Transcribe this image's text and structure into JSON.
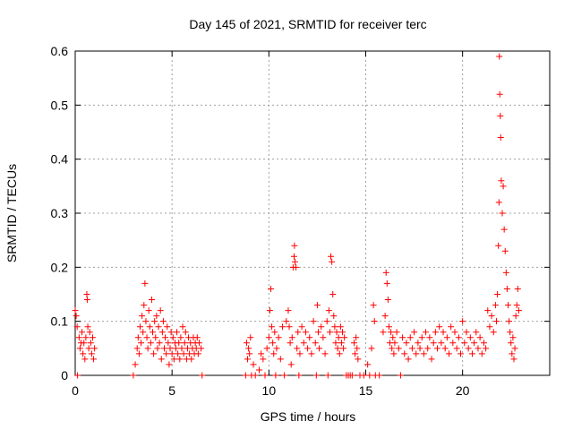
{
  "chart_data": {
    "type": "scatter",
    "title": "Day 145 of 2021, SRMTID for receiver terc",
    "xlabel": "GPS time / hours",
    "ylabel": "SRMTID / TECUs",
    "xlim": [
      0,
      24.5
    ],
    "ylim": [
      0,
      0.6
    ],
    "x_ticks": [
      0,
      5,
      10,
      15,
      20
    ],
    "x_tick_labels": [
      "0",
      "5",
      "10",
      "15",
      "20"
    ],
    "y_ticks": [
      0,
      0.1,
      0.2,
      0.3,
      0.4,
      0.5,
      0.6
    ],
    "y_tick_labels": [
      "0",
      "0.1",
      "0.2",
      "0.3",
      "0.4",
      "0.5",
      "0.6"
    ],
    "grid": true,
    "marker": "plus",
    "color": "#ff0000",
    "series": [
      {
        "name": "SRMTID",
        "points": [
          [
            0.0,
            0.12
          ],
          [
            0.05,
            0.11
          ],
          [
            0.1,
            0.09
          ],
          [
            0.12,
            0.0
          ],
          [
            0.2,
            0.07
          ],
          [
            0.25,
            0.05
          ],
          [
            0.3,
            0.06
          ],
          [
            0.35,
            0.08
          ],
          [
            0.4,
            0.04
          ],
          [
            0.45,
            0.06
          ],
          [
            0.5,
            0.03
          ],
          [
            0.55,
            0.07
          ],
          [
            0.6,
            0.15
          ],
          [
            0.62,
            0.14
          ],
          [
            0.65,
            0.09
          ],
          [
            0.7,
            0.05
          ],
          [
            0.75,
            0.08
          ],
          [
            0.8,
            0.06
          ],
          [
            0.85,
            0.04
          ],
          [
            0.9,
            0.07
          ],
          [
            0.95,
            0.03
          ],
          [
            1.0,
            0.05
          ],
          [
            3.0,
            0.0
          ],
          [
            3.1,
            0.02
          ],
          [
            3.2,
            0.05
          ],
          [
            3.25,
            0.07
          ],
          [
            3.3,
            0.04
          ],
          [
            3.35,
            0.09
          ],
          [
            3.4,
            0.06
          ],
          [
            3.45,
            0.11
          ],
          [
            3.5,
            0.08
          ],
          [
            3.55,
            0.13
          ],
          [
            3.6,
            0.17
          ],
          [
            3.65,
            0.1
          ],
          [
            3.7,
            0.07
          ],
          [
            3.75,
            0.05
          ],
          [
            3.8,
            0.12
          ],
          [
            3.85,
            0.09
          ],
          [
            3.9,
            0.06
          ],
          [
            3.95,
            0.14
          ],
          [
            4.0,
            0.08
          ],
          [
            4.05,
            0.04
          ],
          [
            4.1,
            0.1
          ],
          [
            4.15,
            0.07
          ],
          [
            4.2,
            0.11
          ],
          [
            4.25,
            0.05
          ],
          [
            4.3,
            0.09
          ],
          [
            4.35,
            0.06
          ],
          [
            4.4,
            0.12
          ],
          [
            4.45,
            0.03
          ],
          [
            4.5,
            0.08
          ],
          [
            4.55,
            0.1
          ],
          [
            4.6,
            0.05
          ],
          [
            4.65,
            0.07
          ],
          [
            4.7,
            0.04
          ],
          [
            4.75,
            0.09
          ],
          [
            4.8,
            0.06
          ],
          [
            4.85,
            0.02
          ],
          [
            4.9,
            0.05
          ],
          [
            4.95,
            0.08
          ],
          [
            5.0,
            0.04
          ],
          [
            5.05,
            0.07
          ],
          [
            5.1,
            0.03
          ],
          [
            5.15,
            0.06
          ],
          [
            5.2,
            0.05
          ],
          [
            5.25,
            0.08
          ],
          [
            5.3,
            0.04
          ],
          [
            5.35,
            0.06
          ],
          [
            5.4,
            0.03
          ],
          [
            5.45,
            0.07
          ],
          [
            5.5,
            0.05
          ],
          [
            5.55,
            0.09
          ],
          [
            5.6,
            0.04
          ],
          [
            5.65,
            0.06
          ],
          [
            5.7,
            0.08
          ],
          [
            5.75,
            0.03
          ],
          [
            5.8,
            0.05
          ],
          [
            5.85,
            0.07
          ],
          [
            5.9,
            0.04
          ],
          [
            5.95,
            0.06
          ],
          [
            6.0,
            0.03
          ],
          [
            6.05,
            0.05
          ],
          [
            6.1,
            0.07
          ],
          [
            6.15,
            0.04
          ],
          [
            6.2,
            0.06
          ],
          [
            6.25,
            0.05
          ],
          [
            6.3,
            0.07
          ],
          [
            6.35,
            0.04
          ],
          [
            6.4,
            0.06
          ],
          [
            6.5,
            0.05
          ],
          [
            6.55,
            0.0
          ],
          [
            8.8,
            0.0
          ],
          [
            8.85,
            0.06
          ],
          [
            8.9,
            0.03
          ],
          [
            8.95,
            0.05
          ],
          [
            9.0,
            0.04
          ],
          [
            9.05,
            0.07
          ],
          [
            9.1,
            0.0
          ],
          [
            9.2,
            0.02
          ],
          [
            9.3,
            0.0
          ],
          [
            9.5,
            0.01
          ],
          [
            9.6,
            0.04
          ],
          [
            9.7,
            0.03
          ],
          [
            9.8,
            0.0
          ],
          [
            9.9,
            0.05
          ],
          [
            10.0,
            0.07
          ],
          [
            10.05,
            0.12
          ],
          [
            10.1,
            0.16
          ],
          [
            10.15,
            0.09
          ],
          [
            10.2,
            0.06
          ],
          [
            10.25,
            0.04
          ],
          [
            10.3,
            0.08
          ],
          [
            10.35,
            0.0
          ],
          [
            10.4,
            0.05
          ],
          [
            10.5,
            0.07
          ],
          [
            10.6,
            0.03
          ],
          [
            10.7,
            0.09
          ],
          [
            10.8,
            0.0
          ],
          [
            10.9,
            0.1
          ],
          [
            11.0,
            0.12
          ],
          [
            11.05,
            0.09
          ],
          [
            11.1,
            0.06
          ],
          [
            11.15,
            0.02
          ],
          [
            11.2,
            0.07
          ],
          [
            11.25,
            0.2
          ],
          [
            11.3,
            0.22
          ],
          [
            11.32,
            0.24
          ],
          [
            11.35,
            0.21
          ],
          [
            11.4,
            0.2
          ],
          [
            11.45,
            0.05
          ],
          [
            11.5,
            0.08
          ],
          [
            11.55,
            0.0
          ],
          [
            11.6,
            0.04
          ],
          [
            11.7,
            0.09
          ],
          [
            11.8,
            0.06
          ],
          [
            11.9,
            0.08
          ],
          [
            12.0,
            0.05
          ],
          [
            12.1,
            0.07
          ],
          [
            12.2,
            0.04
          ],
          [
            12.3,
            0.1
          ],
          [
            12.4,
            0.06
          ],
          [
            12.45,
            0.0
          ],
          [
            12.5,
            0.13
          ],
          [
            12.55,
            0.08
          ],
          [
            12.6,
            0.05
          ],
          [
            12.7,
            0.09
          ],
          [
            12.8,
            0.07
          ],
          [
            12.9,
            0.04
          ],
          [
            13.0,
            0.1
          ],
          [
            13.05,
            0.0
          ],
          [
            13.1,
            0.12
          ],
          [
            13.15,
            0.08
          ],
          [
            13.2,
            0.22
          ],
          [
            13.25,
            0.21
          ],
          [
            13.3,
            0.15
          ],
          [
            13.35,
            0.11
          ],
          [
            13.4,
            0.09
          ],
          [
            13.45,
            0.06
          ],
          [
            13.5,
            0.08
          ],
          [
            13.55,
            0.05
          ],
          [
            13.6,
            0.07
          ],
          [
            13.65,
            0.04
          ],
          [
            13.7,
            0.09
          ],
          [
            13.75,
            0.06
          ],
          [
            13.8,
            0.08
          ],
          [
            13.85,
            0.05
          ],
          [
            13.9,
            0.07
          ],
          [
            14.0,
            0.0
          ],
          [
            14.1,
            0.0
          ],
          [
            14.2,
            0.0
          ],
          [
            14.3,
            0.0
          ],
          [
            14.4,
            0.06
          ],
          [
            14.45,
            0.04
          ],
          [
            14.5,
            0.07
          ],
          [
            14.55,
            0.05
          ],
          [
            14.6,
            0.03
          ],
          [
            14.7,
            0.0
          ],
          [
            14.9,
            0.0
          ],
          [
            15.1,
            0.02
          ],
          [
            15.2,
            0.0
          ],
          [
            15.3,
            0.05
          ],
          [
            15.4,
            0.13
          ],
          [
            15.45,
            0.1
          ],
          [
            15.5,
            0.0
          ],
          [
            15.7,
            0.0
          ],
          [
            15.9,
            0.08
          ],
          [
            16.0,
            0.11
          ],
          [
            16.05,
            0.19
          ],
          [
            16.1,
            0.17
          ],
          [
            16.15,
            0.14
          ],
          [
            16.2,
            0.09
          ],
          [
            16.25,
            0.06
          ],
          [
            16.3,
            0.08
          ],
          [
            16.35,
            0.05
          ],
          [
            16.4,
            0.07
          ],
          [
            16.45,
            0.04
          ],
          [
            16.5,
            0.06
          ],
          [
            16.6,
            0.08
          ],
          [
            16.7,
            0.05
          ],
          [
            16.8,
            0.0
          ],
          [
            16.9,
            0.07
          ],
          [
            17.0,
            0.04
          ],
          [
            17.1,
            0.06
          ],
          [
            17.2,
            0.03
          ],
          [
            17.3,
            0.07
          ],
          [
            17.4,
            0.05
          ],
          [
            17.5,
            0.08
          ],
          [
            17.6,
            0.04
          ],
          [
            17.7,
            0.06
          ],
          [
            17.8,
            0.05
          ],
          [
            17.9,
            0.07
          ],
          [
            18.0,
            0.04
          ],
          [
            18.1,
            0.08
          ],
          [
            18.2,
            0.05
          ],
          [
            18.3,
            0.07
          ],
          [
            18.4,
            0.03
          ],
          [
            18.5,
            0.06
          ],
          [
            18.6,
            0.08
          ],
          [
            18.7,
            0.05
          ],
          [
            18.8,
            0.09
          ],
          [
            18.9,
            0.06
          ],
          [
            19.0,
            0.08
          ],
          [
            19.1,
            0.05
          ],
          [
            19.2,
            0.07
          ],
          [
            19.3,
            0.04
          ],
          [
            19.4,
            0.09
          ],
          [
            19.5,
            0.06
          ],
          [
            19.6,
            0.08
          ],
          [
            19.7,
            0.05
          ],
          [
            19.8,
            0.07
          ],
          [
            19.9,
            0.04
          ],
          [
            20.0,
            0.1
          ],
          [
            20.1,
            0.06
          ],
          [
            20.2,
            0.08
          ],
          [
            20.3,
            0.05
          ],
          [
            20.4,
            0.07
          ],
          [
            20.5,
            0.04
          ],
          [
            20.6,
            0.06
          ],
          [
            20.7,
            0.08
          ],
          [
            20.8,
            0.05
          ],
          [
            20.9,
            0.07
          ],
          [
            21.0,
            0.04
          ],
          [
            21.1,
            0.06
          ],
          [
            21.2,
            0.05
          ],
          [
            21.3,
            0.12
          ],
          [
            21.4,
            0.09
          ],
          [
            21.5,
            0.11
          ],
          [
            21.6,
            0.08
          ],
          [
            21.7,
            0.13
          ],
          [
            21.75,
            0.1
          ],
          [
            21.8,
            0.15
          ],
          [
            21.85,
            0.24
          ],
          [
            21.88,
            0.32
          ],
          [
            21.9,
            0.59
          ],
          [
            21.92,
            0.52
          ],
          [
            21.95,
            0.48
          ],
          [
            21.97,
            0.44
          ],
          [
            22.0,
            0.36
          ],
          [
            22.05,
            0.3
          ],
          [
            22.1,
            0.35
          ],
          [
            22.15,
            0.27
          ],
          [
            22.2,
            0.23
          ],
          [
            22.25,
            0.19
          ],
          [
            22.3,
            0.16
          ],
          [
            22.35,
            0.13
          ],
          [
            22.4,
            0.1
          ],
          [
            22.45,
            0.08
          ],
          [
            22.5,
            0.06
          ],
          [
            22.55,
            0.04
          ],
          [
            22.6,
            0.07
          ],
          [
            22.65,
            0.03
          ],
          [
            22.7,
            0.05
          ],
          [
            22.75,
            0.11
          ],
          [
            22.8,
            0.13
          ],
          [
            22.85,
            0.16
          ],
          [
            22.9,
            0.12
          ]
        ]
      }
    ]
  }
}
